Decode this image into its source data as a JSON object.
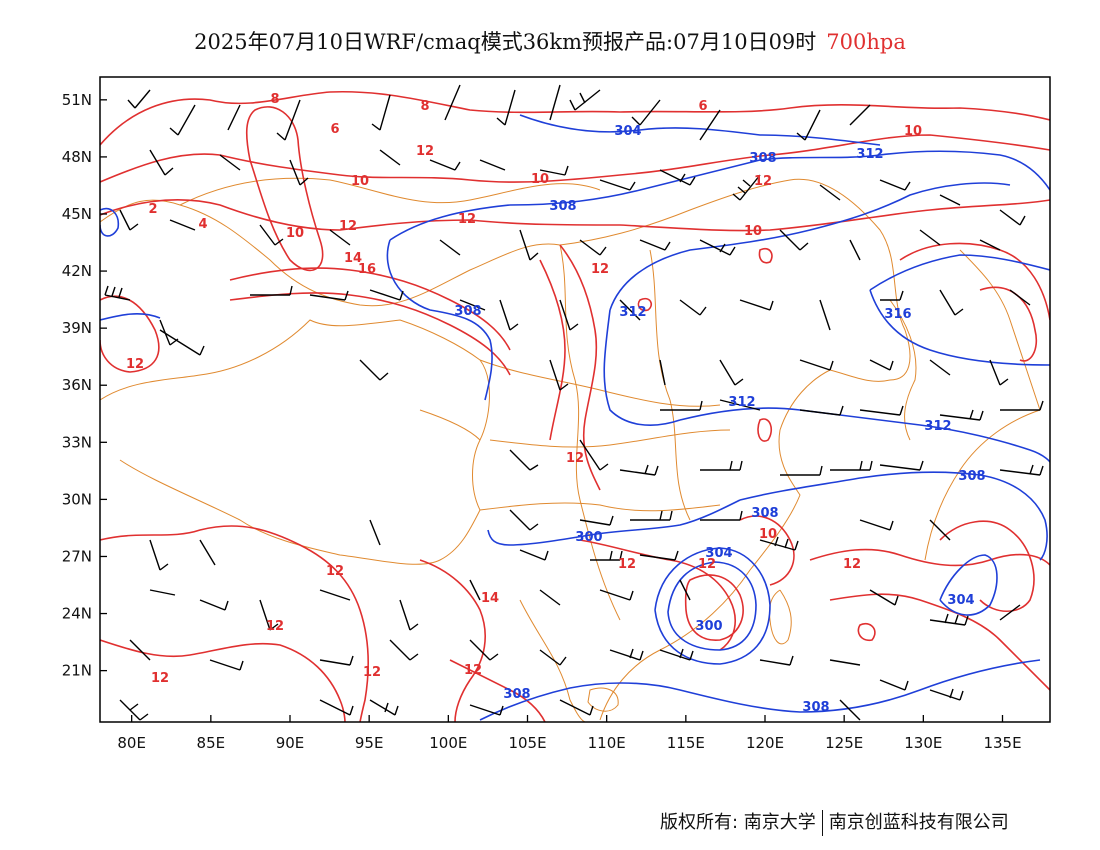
{
  "header": {
    "title": "2025年07月10日WRF/cmaq模式36km预报产品:07月10日09时",
    "level": "700hpa"
  },
  "footer": {
    "copyright": "版权所有: 南京大学",
    "company": "南京创蓝科技有限公司"
  },
  "map": {
    "lon_labels": [
      "80E",
      "85E",
      "90E",
      "95E",
      "100E",
      "105E",
      "110E",
      "115E",
      "120E",
      "125E",
      "130E",
      "135E"
    ],
    "lat_labels": [
      "51N",
      "48N",
      "45N",
      "42N",
      "39N",
      "36N",
      "33N",
      "30N",
      "27N",
      "24N",
      "21N"
    ],
    "colors": {
      "temperature": "#e03030",
      "height": "#1f3fd8",
      "border": "#e08a30",
      "wind": "#000000"
    },
    "temperature_labels": [
      "8",
      "8",
      "6",
      "6",
      "10",
      "10",
      "10",
      "12",
      "12",
      "12",
      "2",
      "4",
      "10",
      "12",
      "14",
      "16",
      "12",
      "10",
      "12",
      "12",
      "12",
      "12",
      "12",
      "12",
      "14",
      "12",
      "12",
      "10",
      "12",
      "12"
    ],
    "height_labels": [
      "304",
      "308",
      "312",
      "308",
      "308",
      "312",
      "316",
      "312",
      "312",
      "308",
      "308",
      "300",
      "304",
      "300",
      "308",
      "308",
      "304"
    ]
  }
}
